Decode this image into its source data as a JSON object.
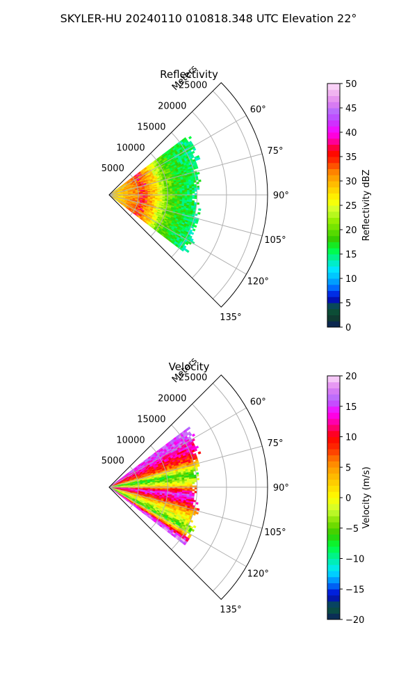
{
  "figure_title": "SKYLER-HU  20240110  010818.348 UTC Elevation 22°",
  "colors": {
    "grid": "#b0b0b0",
    "axis": "#000000"
  },
  "chart_data": [
    {
      "type": "polar_sector",
      "title": "Reflectivity",
      "range_label": "Meters",
      "radial_ticks": [
        5000,
        10000,
        15000,
        20000,
        25000
      ],
      "radial_tick_labels": [
        "5000",
        "10000",
        "15000",
        "20000",
        "25000"
      ],
      "rmax": 27000,
      "theta_range_deg": [
        45,
        135
      ],
      "angle_ticks": [
        60,
        75,
        90,
        105,
        120,
        135
      ],
      "angle_tick_labels": [
        "60°",
        "75°",
        "90°",
        "105°",
        "120°",
        "135°"
      ],
      "data_extent": {
        "azimuth_deg": [
          53,
          127
        ],
        "max_range_m": {
          "near_53": 16000,
          "near_90": 14000,
          "near_127": 15500
        }
      },
      "colorbar": {
        "label": "Reflectivity dBZ",
        "min": 0,
        "max": 50,
        "ticks": [
          0,
          5,
          10,
          15,
          20,
          25,
          30,
          35,
          40,
          45,
          50
        ],
        "tick_labels": [
          "0",
          "5",
          "10",
          "15",
          "20",
          "25",
          "30",
          "35",
          "40",
          "45",
          "50"
        ],
        "stops": [
          {
            "value": 0,
            "color": "#0b1f5e"
          },
          {
            "value": 2,
            "color": "#0f3d2e"
          },
          {
            "value": 4,
            "color": "#0a5a3c"
          },
          {
            "value": 6,
            "color": "#0000d0"
          },
          {
            "value": 8,
            "color": "#0066ff"
          },
          {
            "value": 10,
            "color": "#00b8ff"
          },
          {
            "value": 12,
            "color": "#00e8ff"
          },
          {
            "value": 14,
            "color": "#00f0a0"
          },
          {
            "value": 16,
            "color": "#00ff3c"
          },
          {
            "value": 18,
            "color": "#33cc00"
          },
          {
            "value": 20,
            "color": "#66e000"
          },
          {
            "value": 22,
            "color": "#99f000"
          },
          {
            "value": 24,
            "color": "#ccff33"
          },
          {
            "value": 26,
            "color": "#ffff00"
          },
          {
            "value": 28,
            "color": "#ffd700"
          },
          {
            "value": 30,
            "color": "#ffb000"
          },
          {
            "value": 32,
            "color": "#ff8000"
          },
          {
            "value": 34,
            "color": "#ff3000"
          },
          {
            "value": 36,
            "color": "#ff0000"
          },
          {
            "value": 38,
            "color": "#ff0090"
          },
          {
            "value": 40,
            "color": "#ff00ff"
          },
          {
            "value": 42,
            "color": "#cc33ff"
          },
          {
            "value": 44,
            "color": "#b266ff"
          },
          {
            "value": 46,
            "color": "#e080f0"
          },
          {
            "value": 48,
            "color": "#f0b0f0"
          },
          {
            "value": 50,
            "color": "#fde0fa"
          }
        ]
      },
      "field_pattern": [
        {
          "range_m": 1500,
          "value": 28
        },
        {
          "range_m": 3000,
          "value": 30
        },
        {
          "range_m": 5500,
          "value": 33
        },
        {
          "range_m": 7500,
          "value": 29
        },
        {
          "range_m": 9500,
          "value": 21
        },
        {
          "range_m": 12000,
          "value": 17
        },
        {
          "range_m": 15000,
          "value": 15
        }
      ]
    },
    {
      "type": "polar_sector",
      "title": "Velocity",
      "range_label": "Meters",
      "radial_ticks": [
        5000,
        10000,
        15000,
        20000,
        25000
      ],
      "radial_tick_labels": [
        "5000",
        "10000",
        "15000",
        "20000",
        "25000"
      ],
      "rmax": 27000,
      "theta_range_deg": [
        45,
        135
      ],
      "angle_ticks": [
        60,
        75,
        90,
        105,
        120,
        135
      ],
      "angle_tick_labels": [
        "60°",
        "75°",
        "90°",
        "105°",
        "120°",
        "135°"
      ],
      "data_extent": {
        "azimuth_deg": [
          53,
          127
        ],
        "max_range_m": {
          "near_53": 16000,
          "near_90": 14000,
          "near_127": 15500
        }
      },
      "colorbar": {
        "label": "Velocity (m/s)",
        "min": -20,
        "max": 20,
        "ticks": [
          -20,
          -15,
          -10,
          -5,
          0,
          5,
          10,
          15,
          20
        ],
        "tick_labels": [
          "−20",
          "−15",
          "−10",
          "−5",
          "0",
          "5",
          "10",
          "15",
          "20"
        ],
        "stops": [
          {
            "value": -20,
            "color": "#0b1f5e"
          },
          {
            "value": -18,
            "color": "#0a5a3c"
          },
          {
            "value": -16,
            "color": "#0000d0"
          },
          {
            "value": -14,
            "color": "#0080ff"
          },
          {
            "value": -12,
            "color": "#00e8ff"
          },
          {
            "value": -10,
            "color": "#00f0a0"
          },
          {
            "value": -8,
            "color": "#00ff3c"
          },
          {
            "value": -6,
            "color": "#33cc00"
          },
          {
            "value": -4,
            "color": "#80e000"
          },
          {
            "value": -2,
            "color": "#ccff33"
          },
          {
            "value": 0,
            "color": "#ffff00"
          },
          {
            "value": 2,
            "color": "#ffd700"
          },
          {
            "value": 4,
            "color": "#ffb000"
          },
          {
            "value": 6,
            "color": "#ff8000"
          },
          {
            "value": 8,
            "color": "#ff3000"
          },
          {
            "value": 10,
            "color": "#ff0000"
          },
          {
            "value": 12,
            "color": "#ff0090"
          },
          {
            "value": 14,
            "color": "#ff00ff"
          },
          {
            "value": 16,
            "color": "#b266ff"
          },
          {
            "value": 18,
            "color": "#e080f0"
          },
          {
            "value": 20,
            "color": "#fde0fa"
          }
        ]
      },
      "field_pattern": [
        {
          "azimuth_deg": 57,
          "value": 14
        },
        {
          "azimuth_deg": 65,
          "value": 10
        },
        {
          "azimuth_deg": 72,
          "value": 6
        },
        {
          "azimuth_deg": 80,
          "value": -8
        },
        {
          "azimuth_deg": 87,
          "value": -2
        },
        {
          "azimuth_deg": 95,
          "value": 14
        },
        {
          "azimuth_deg": 101,
          "value": 9
        },
        {
          "azimuth_deg": 110,
          "value": -1
        },
        {
          "azimuth_deg": 118,
          "value": -7
        },
        {
          "azimuth_deg": 125,
          "value": 15
        }
      ]
    }
  ]
}
